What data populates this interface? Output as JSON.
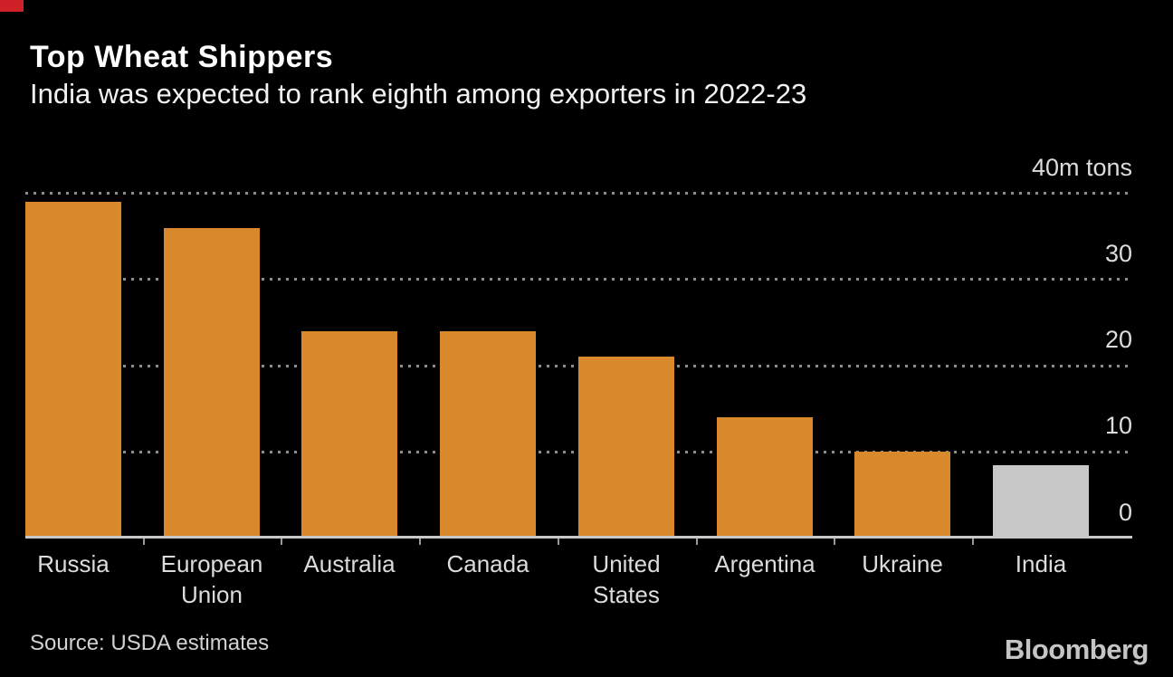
{
  "corner_marker": {
    "color": "#cf2127"
  },
  "header": {
    "title": "Top Wheat Shippers",
    "subtitle": "India was expected to rank eighth among exporters in 2022-23"
  },
  "chart_data": {
    "type": "bar",
    "title": "Top Wheat Shippers",
    "subtitle": "India was expected to rank eighth among exporters in 2022-23",
    "categories": [
      "Russia",
      "European Union",
      "Australia",
      "Canada",
      "United States",
      "Argentina",
      "Ukraine",
      "India"
    ],
    "values": [
      39,
      36,
      24,
      24,
      21,
      14,
      10,
      8.5
    ],
    "xtick_labels": [
      "Russia",
      "European\nUnion",
      "Australia",
      "Canada",
      "United\nStates",
      "Argentina",
      "Ukraine",
      "India"
    ],
    "ylabel": "m tons",
    "xlabel": "",
    "ytick_values": [
      40,
      30,
      20,
      10,
      0
    ],
    "ytick_labels": [
      "40m tons",
      "30",
      "20",
      "10",
      "0"
    ],
    "ylim": [
      0,
      40
    ],
    "grid": "horizontal-dotted",
    "legend": "none",
    "bar_color": "#d9892b",
    "highlight": {
      "category": "India",
      "color": "#c8c8c8"
    },
    "background_color": "#000000",
    "axis_color": "#c8c8c8",
    "gridline_color": "#8c8c8c",
    "label_color": "#dcdcdc"
  },
  "footer": {
    "source": "Source: USDA estimates",
    "logo": "Bloomberg"
  }
}
